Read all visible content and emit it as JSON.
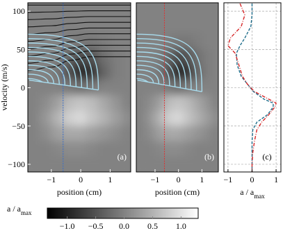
{
  "chart_data": [
    {
      "type": "heatmap",
      "panel_label": "(a)",
      "x_label": "position (cm)",
      "y_label": "velocity (m/s)",
      "xlim": [
        -1.8,
        1.7
      ],
      "xticks": [
        {
          "value": -1,
          "label": "−1"
        },
        0,
        1
      ],
      "ylim": [
        -110,
        111
      ],
      "yticks": [
        {
          "value": -100,
          "label": "−100"
        },
        {
          "value": -50,
          "label": "−50"
        },
        0,
        50,
        100
      ],
      "x": [
        -1.6,
        -1.2,
        -0.8,
        -0.4,
        0,
        0.4,
        0.8,
        1.2,
        1.6
      ],
      "y": [
        100,
        80,
        60,
        40,
        20,
        0,
        -20,
        -40,
        -60,
        -80,
        -100
      ],
      "z": [
        [
          0,
          0,
          0,
          0,
          0,
          0,
          0,
          0,
          0
        ],
        [
          0,
          0,
          0,
          0,
          0,
          0,
          0,
          0,
          0
        ],
        [
          0,
          0,
          0,
          -0.05,
          -0.1,
          -0.1,
          -0.05,
          0,
          0
        ],
        [
          0,
          0,
          -0.05,
          -0.3,
          -0.6,
          -0.5,
          -0.2,
          -0.05,
          0
        ],
        [
          0,
          0,
          -0.1,
          -0.5,
          -0.9,
          -0.8,
          -0.3,
          -0.05,
          0
        ],
        [
          0,
          0,
          0,
          -0.1,
          -0.2,
          -0.1,
          0,
          0,
          0
        ],
        [
          0,
          0.1,
          0.3,
          0.6,
          0.7,
          0.6,
          0.4,
          0.2,
          0
        ],
        [
          0,
          0.2,
          0.5,
          0.8,
          0.9,
          0.7,
          0.5,
          0.3,
          0.1
        ],
        [
          0,
          0.1,
          0.3,
          0.4,
          0.4,
          0.3,
          0.2,
          0.1,
          0
        ],
        [
          0,
          0,
          0.05,
          0.1,
          0.1,
          0.05,
          0,
          0,
          0
        ],
        [
          0,
          0,
          0,
          0,
          0,
          0,
          0,
          0,
          0
        ]
      ],
      "marker_x": -0.6,
      "marker_color": "#3a6fc9"
    },
    {
      "type": "heatmap",
      "panel_label": "(b)",
      "x_label": "position (cm)",
      "xlim": [
        -1.8,
        1.7
      ],
      "xticks": [
        {
          "value": -1,
          "label": "−1"
        },
        0,
        1
      ],
      "ylim": [
        -110,
        111
      ],
      "x": [
        -1.6,
        -1.2,
        -0.8,
        -0.4,
        0,
        0.4,
        0.8,
        1.2,
        1.6
      ],
      "y": [
        100,
        80,
        60,
        40,
        20,
        0,
        -20,
        -40,
        -60,
        -80,
        -100
      ],
      "z": [
        [
          0,
          0,
          0,
          0,
          0,
          0,
          0,
          0,
          0
        ],
        [
          0,
          0,
          0,
          0,
          0,
          0,
          0,
          0,
          0
        ],
        [
          0,
          0,
          0,
          -0.05,
          -0.1,
          -0.1,
          -0.05,
          0,
          0
        ],
        [
          0,
          0,
          -0.05,
          -0.3,
          -0.6,
          -0.5,
          -0.2,
          -0.05,
          0
        ],
        [
          0,
          0,
          -0.1,
          -0.5,
          -0.9,
          -0.8,
          -0.3,
          -0.05,
          0
        ],
        [
          0,
          0,
          0,
          -0.1,
          -0.2,
          -0.1,
          0,
          0,
          0
        ],
        [
          0,
          0.1,
          0.3,
          0.6,
          0.7,
          0.6,
          0.4,
          0.2,
          0
        ],
        [
          0,
          0.2,
          0.5,
          0.8,
          0.9,
          0.7,
          0.5,
          0.3,
          0.1
        ],
        [
          0,
          0.1,
          0.3,
          0.4,
          0.4,
          0.3,
          0.2,
          0.1,
          0
        ],
        [
          0,
          0,
          0.05,
          0.1,
          0.1,
          0.05,
          0,
          0,
          0
        ],
        [
          0,
          0,
          0,
          0,
          0,
          0,
          0,
          0,
          0
        ]
      ],
      "marker_x": -0.6,
      "marker_color": "#e03030"
    },
    {
      "type": "line",
      "panel_label": "(c)",
      "x_label": "a / a",
      "x_label_sub": "max",
      "xlim": [
        -1.17,
        1.2
      ],
      "xticks": [
        {
          "value": -1,
          "label": "−1"
        },
        0,
        1
      ],
      "ylim": [
        -110,
        111
      ],
      "yticks": [
        -100,
        -50,
        0,
        50,
        100
      ],
      "grid": true,
      "y": [
        110,
        95,
        80,
        65,
        55,
        45,
        30,
        15,
        5,
        -5,
        -15,
        -20,
        -25,
        -35,
        -45,
        -55,
        -70,
        -85,
        -100,
        -110
      ],
      "series": [
        {
          "color": "#1f6e8c",
          "style": "dashed",
          "values": [
            0,
            0,
            -0.05,
            -0.3,
            -0.5,
            -0.65,
            -0.62,
            -0.45,
            -0.2,
            0.06,
            0.5,
            0.88,
            0.88,
            0.65,
            0.2,
            0.03,
            0,
            0,
            0,
            0
          ]
        },
        {
          "color": "#d62728",
          "style": "dashdot",
          "values": [
            -0.5,
            -0.3,
            -0.45,
            -0.9,
            -1.0,
            -0.7,
            -0.55,
            -0.4,
            -0.2,
            0.1,
            0.7,
            1.0,
            0.95,
            0.7,
            0.4,
            0.2,
            0.1,
            0.03,
            0,
            0
          ]
        }
      ]
    }
  ],
  "colorbar": {
    "label": "a / a",
    "label_sub": "max",
    "lim": [
      -1.35,
      1.3
    ],
    "ticks": [
      {
        "value": -1,
        "label": "−1.0"
      },
      {
        "value": -0.5,
        "label": "−0.5"
      },
      {
        "value": 0,
        "label": "0.0"
      },
      {
        "value": 0.5,
        "label": "0.5"
      },
      {
        "value": 1,
        "label": "1.0"
      }
    ]
  }
}
